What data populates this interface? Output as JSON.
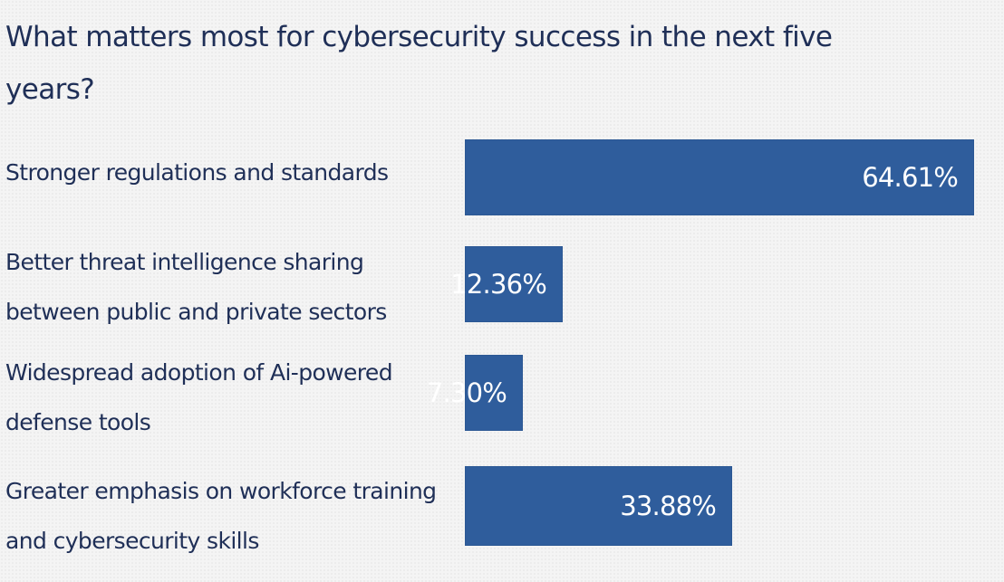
{
  "chart_data": {
    "type": "bar",
    "orientation": "horizontal",
    "title": "What matters most for cybersecurity success in the next five years?",
    "categories": [
      "Stronger regulations and standards",
      "Better threat intelligence sharing between public and private sectors",
      "Widespread adoption of Ai-powered defense tools",
      "Greater emphasis on workforce training and cybersecurity skills"
    ],
    "values": [
      64.61,
      12.36,
      7.3,
      33.88
    ],
    "value_labels": [
      "64.61%",
      "12.36%",
      "7.30%",
      "33.88%"
    ],
    "unit": "%",
    "xlim": [
      0,
      100
    ],
    "grid": false,
    "legend": "none",
    "colors": {
      "bar": "#2f5d9c",
      "text": "#1f2f57",
      "value_text": "#ffffff",
      "background": "#f4f4f4"
    }
  }
}
